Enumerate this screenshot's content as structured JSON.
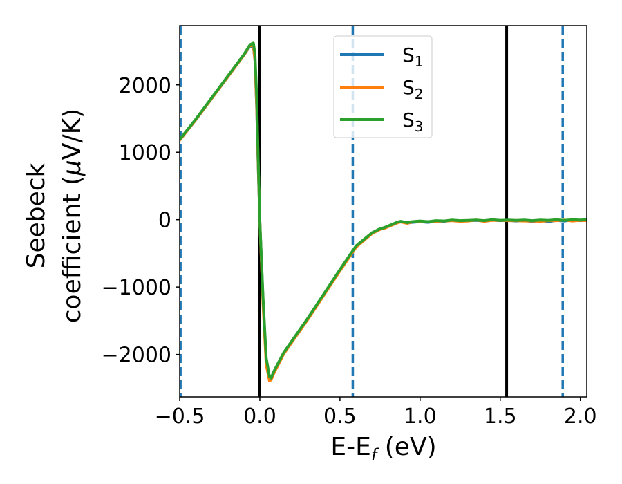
{
  "chart_data": {
    "type": "line",
    "xlabel": {
      "main": "E-E",
      "sub": "f",
      "tail": " (eV)"
    },
    "ylabel": {
      "line1": "Seebeck",
      "line2_prefix": "coefficient  (",
      "mu": "μ",
      "line2_suffix": "V/K)"
    },
    "xlim": [
      -0.5,
      2.04
    ],
    "ylim": [
      -2630,
      2880
    ],
    "x_ticks": [
      {
        "value": -0.5,
        "label": "−0.5"
      },
      {
        "value": 0.0,
        "label": "0.0"
      },
      {
        "value": 0.5,
        "label": "0.5"
      },
      {
        "value": 1.0,
        "label": "1.0"
      },
      {
        "value": 1.5,
        "label": "1.5"
      },
      {
        "value": 2.0,
        "label": "2.0"
      }
    ],
    "y_ticks": [
      {
        "value": 2000,
        "label": "2000"
      },
      {
        "value": 1000,
        "label": "1000"
      },
      {
        "value": 0,
        "label": "0"
      },
      {
        "value": -1000,
        "label": "−1000"
      },
      {
        "value": -2000,
        "label": "−2000"
      }
    ],
    "vertical_lines": [
      {
        "x": 0.0,
        "style": "solid",
        "color": "#000000"
      },
      {
        "x": 1.54,
        "style": "solid",
        "color": "#000000"
      },
      {
        "x": -0.495,
        "style": "dashed",
        "color": "#1f77b4"
      },
      {
        "x": 0.58,
        "style": "dashed",
        "color": "#1f77b4"
      },
      {
        "x": 1.89,
        "style": "dashed",
        "color": "#1f77b4"
      }
    ],
    "legend": {
      "position": "upper-center"
    },
    "series": [
      {
        "name": "S",
        "sub": "1",
        "color": "#1f77b4",
        "x": [
          -0.5,
          -0.4,
          -0.3,
          -0.2,
          -0.1,
          -0.06,
          -0.04,
          -0.03,
          -0.02,
          -0.01,
          0.0,
          0.02,
          0.04,
          0.06,
          0.07,
          0.09,
          0.15,
          0.3,
          0.5,
          0.6,
          0.7,
          0.75,
          0.78,
          0.82,
          0.86,
          0.88,
          0.92,
          0.95,
          1.0,
          1.05,
          1.1,
          1.15,
          1.2,
          1.25,
          1.3,
          1.35,
          1.4,
          1.45,
          1.5,
          1.55,
          1.6,
          1.65,
          1.7,
          1.75,
          1.8,
          1.85,
          1.9,
          1.95,
          2.0,
          2.04
        ],
        "y": [
          1180,
          1480,
          1800,
          2120,
          2440,
          2580,
          2560,
          2350,
          1700,
          800,
          0,
          -1200,
          -2100,
          -2350,
          -2360,
          -2250,
          -1980,
          -1470,
          -750,
          -400,
          -200,
          -140,
          -120,
          -80,
          -40,
          -30,
          -50,
          -40,
          -30,
          -40,
          -20,
          -25,
          -10,
          -20,
          -15,
          -10,
          -20,
          -5,
          -15,
          -10,
          -20,
          -10,
          -30,
          -10,
          -30,
          -10,
          -20,
          -5,
          -15,
          -10
        ]
      },
      {
        "name": "S",
        "sub": "2",
        "color": "#ff7f0e",
        "x": [
          -0.5,
          -0.4,
          -0.3,
          -0.2,
          -0.1,
          -0.06,
          -0.04,
          -0.03,
          -0.02,
          -0.01,
          0.0,
          0.02,
          0.04,
          0.06,
          0.07,
          0.09,
          0.15,
          0.3,
          0.5,
          0.6,
          0.7,
          0.75,
          0.78,
          0.82,
          0.86,
          0.88,
          0.92,
          0.95,
          1.0,
          1.05,
          1.1,
          1.15,
          1.2,
          1.25,
          1.3,
          1.35,
          1.4,
          1.45,
          1.5,
          1.55,
          1.6,
          1.65,
          1.7,
          1.75,
          1.8,
          1.85,
          1.9,
          1.95,
          2.0,
          2.04
        ],
        "y": [
          1180,
          1480,
          1800,
          2120,
          2440,
          2590,
          2570,
          2360,
          1720,
          820,
          0,
          -1250,
          -2150,
          -2390,
          -2380,
          -2270,
          -1990,
          -1480,
          -760,
          -410,
          -205,
          -145,
          -125,
          -85,
          -45,
          -35,
          -55,
          -35,
          -25,
          -35,
          -25,
          -20,
          -15,
          -25,
          -20,
          -5,
          -25,
          -10,
          -10,
          -15,
          -15,
          -20,
          -20,
          -25,
          -15,
          -15,
          -5,
          -20,
          -10,
          -15
        ]
      },
      {
        "name": "S",
        "sub": "3",
        "color": "#2ca02c",
        "x": [
          -0.5,
          -0.4,
          -0.3,
          -0.2,
          -0.1,
          -0.06,
          -0.04,
          -0.03,
          -0.02,
          -0.01,
          0.0,
          0.02,
          0.04,
          0.06,
          0.07,
          0.09,
          0.15,
          0.3,
          0.5,
          0.6,
          0.7,
          0.75,
          0.78,
          0.82,
          0.86,
          0.88,
          0.92,
          0.95,
          1.0,
          1.05,
          1.1,
          1.15,
          1.2,
          1.25,
          1.3,
          1.35,
          1.4,
          1.45,
          1.5,
          1.55,
          1.6,
          1.65,
          1.7,
          1.75,
          1.8,
          1.85,
          1.9,
          1.95,
          2.0,
          2.04
        ],
        "y": [
          1190,
          1490,
          1810,
          2130,
          2450,
          2600,
          2620,
          2450,
          1850,
          900,
          0,
          -1150,
          -2050,
          -2330,
          -2350,
          -2240,
          -1970,
          -1460,
          -740,
          -390,
          -195,
          -135,
          -115,
          -75,
          -35,
          -25,
          -45,
          -30,
          -20,
          -30,
          -15,
          -20,
          -5,
          -15,
          -10,
          -5,
          -15,
          0,
          -10,
          -5,
          -10,
          -5,
          -15,
          -5,
          -10,
          0,
          -10,
          0,
          -5,
          0
        ]
      }
    ]
  }
}
